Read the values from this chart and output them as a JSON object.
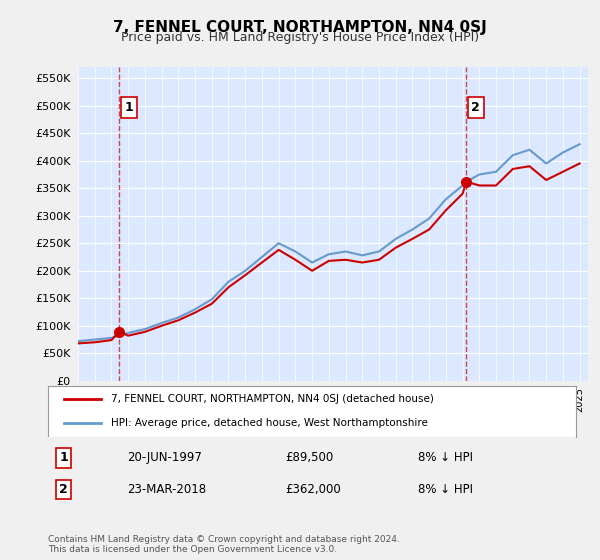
{
  "title": "7, FENNEL COURT, NORTHAMPTON, NN4 0SJ",
  "subtitle": "Price paid vs. HM Land Registry's House Price Index (HPI)",
  "ylabel": "",
  "background_color": "#e8f0ff",
  "plot_bg": "#dce8ff",
  "grid_color": "#ffffff",
  "point1_year": 1997.47,
  "point1_value": 89500,
  "point1_label": "1",
  "point1_date": "20-JUN-1997",
  "point1_price": "£89,500",
  "point1_hpi": "8% ↓ HPI",
  "point2_year": 2018.23,
  "point2_value": 362000,
  "point2_label": "2",
  "point2_date": "23-MAR-2018",
  "point2_price": "£362,000",
  "point2_hpi": "8% ↓ HPI",
  "line_color_red": "#cc0000",
  "line_color_blue": "#6699cc",
  "ylim": [
    0,
    570000
  ],
  "yticks": [
    0,
    50000,
    100000,
    150000,
    200000,
    250000,
    300000,
    350000,
    400000,
    450000,
    500000,
    550000
  ],
  "ylabel_format": "£{0}K",
  "legend_line1": "7, FENNEL COURT, NORTHAMPTON, NN4 0SJ (detached house)",
  "legend_line2": "HPI: Average price, detached house, West Northamptonshire",
  "footer": "Contains HM Land Registry data © Crown copyright and database right 2024.\nThis data is licensed under the Open Government Licence v3.0.",
  "hpi_years": [
    1995,
    1996,
    1997,
    1997.47,
    1998,
    1999,
    2000,
    2001,
    2002,
    2003,
    2004,
    2005,
    2006,
    2007,
    2008,
    2009,
    2010,
    2011,
    2012,
    2013,
    2014,
    2015,
    2016,
    2017,
    2018,
    2018.23,
    2019,
    2020,
    2021,
    2022,
    2023,
    2024,
    2025
  ],
  "hpi_values": [
    72000,
    75000,
    78000,
    82000,
    87000,
    94000,
    105000,
    115000,
    130000,
    148000,
    180000,
    200000,
    225000,
    250000,
    235000,
    215000,
    230000,
    235000,
    228000,
    235000,
    258000,
    275000,
    295000,
    330000,
    355000,
    362000,
    375000,
    380000,
    410000,
    420000,
    395000,
    415000,
    430000
  ],
  "red_years": [
    1995,
    1996,
    1997,
    1997.47,
    1998,
    1999,
    2000,
    2001,
    2002,
    2003,
    2004,
    2005,
    2006,
    2007,
    2008,
    2009,
    2010,
    2011,
    2012,
    2013,
    2014,
    2015,
    2016,
    2017,
    2018,
    2018.23,
    2019,
    2020,
    2021,
    2022,
    2023,
    2024,
    2025
  ],
  "red_values": [
    68000,
    70000,
    74000,
    89500,
    82000,
    89000,
    100000,
    110000,
    124000,
    140000,
    170000,
    192000,
    215000,
    238000,
    220000,
    200000,
    218000,
    220000,
    215000,
    220000,
    242000,
    258000,
    275000,
    310000,
    340000,
    362000,
    355000,
    355000,
    385000,
    390000,
    365000,
    380000,
    395000
  ]
}
